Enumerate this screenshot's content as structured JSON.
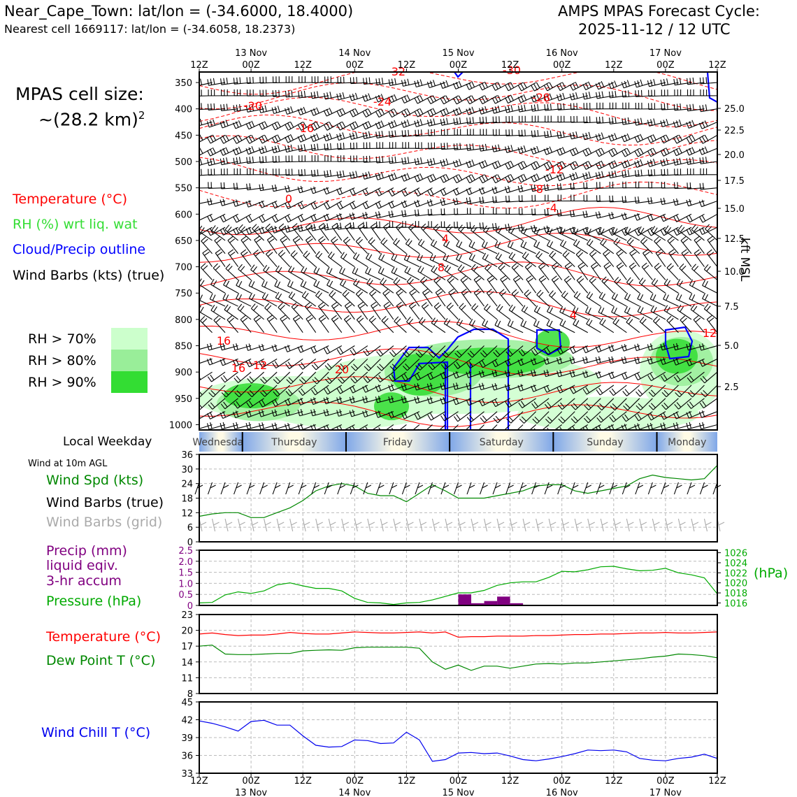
{
  "header": {
    "location": "Near_Cape_Town: lat/lon = (-34.6000, 18.4000)",
    "nearest_cell": "Nearest cell 1669117: lat/lon = (-34.6058, 18.2373)",
    "cycle_line1": "AMPS MPAS Forecast Cycle:",
    "cycle_line2": "2025-11-12 / 12 UTC"
  },
  "cell_size": {
    "line1": "MPAS cell size:",
    "line2": "~(28.2 km)",
    "sup": "2"
  },
  "legend_upper": {
    "temperature": "Temperature (°C)",
    "rh": "RH (%) wrt liq. wat",
    "cloud": "Cloud/Precip outline",
    "barbs": "Wind Barbs (kts) (true)",
    "rh70": "RH > 70%",
    "rh80": "RH > 80%",
    "rh90": "RH > 90%"
  },
  "colors": {
    "temperature": "#ff0000",
    "rh": "#33dd33",
    "cloud": "#0000ff",
    "rh70": "#ccffcc",
    "rh80": "#99ee99",
    "rh90": "#33dd33",
    "precip": "#800080",
    "pressure": "#00aa00",
    "dewpoint": "#008800",
    "windchill": "#0000ee",
    "grid_barbs": "#aaaaaa",
    "day_band": "#7fa7e8"
  },
  "time_axis": {
    "ticks": [
      "12Z",
      "00Z",
      "12Z",
      "00Z",
      "12Z",
      "00Z",
      "12Z",
      "00Z",
      "12Z",
      "00Z",
      "12Z"
    ],
    "dates": [
      "13 Nov",
      "14 Nov",
      "15 Nov",
      "16 Nov",
      "17 Nov"
    ]
  },
  "pressure_axis": {
    "ticks": [
      "350",
      "400",
      "450",
      "500",
      "550",
      "600",
      "650",
      "700",
      "750",
      "800",
      "850",
      "900",
      "950",
      "1000"
    ],
    "right_label": "kft MSL",
    "right_ticks": [
      "25.0",
      "22.5",
      "20.0",
      "17.5",
      "15.0",
      "12.5",
      "10.0",
      "7.5",
      "5.0",
      "2.5"
    ]
  },
  "contour_labels": [
    "-32",
    "-30",
    "-28",
    "-24",
    "-20",
    "-16",
    "-12",
    "-8",
    "-4",
    "0",
    "4",
    "8",
    "4",
    "16",
    "16",
    "12",
    "20",
    "12"
  ],
  "weekday": {
    "label": "Local Weekday",
    "days": [
      "Wednesday",
      "Thursday",
      "Friday",
      "Saturday",
      "Sunday",
      "Monday"
    ]
  },
  "panel_wind": {
    "title": "Wind at 10m AGL",
    "spd": "Wind Spd (kts)",
    "barbs_true": "Wind Barbs (true)",
    "barbs_grid": "Wind Barbs (grid)",
    "yticks": [
      "36",
      "30",
      "24",
      "18",
      "12",
      "6",
      "0"
    ]
  },
  "panel_precip": {
    "precip": "Precip (mm)",
    "liquid": "liquid eqiv.",
    "accum": "3-hr accum",
    "pressure": "Pressure (hPa)",
    "unit": "(hPa)",
    "yticks_left": [
      "2.5",
      "2.0",
      "1.5",
      "1.0",
      "0.5",
      "0"
    ],
    "yticks_right": [
      "1026",
      "1024",
      "1022",
      "1020",
      "1018",
      "1016"
    ]
  },
  "panel_temp": {
    "temperature": "Temperature (°C)",
    "dewpoint": "Dew Point T (°C)",
    "yticks": [
      "23",
      "20",
      "17",
      "14",
      "11",
      "8"
    ]
  },
  "panel_wc": {
    "label": "Wind Chill T (°C)",
    "yticks": [
      "45",
      "42",
      "39",
      "36",
      "33"
    ]
  },
  "chart_data": [
    {
      "type": "line",
      "name": "10m wind speed",
      "ylabel": "Wind Spd (kts)",
      "ylim": [
        0,
        36
      ],
      "x_hours": [
        0,
        3,
        6,
        9,
        12,
        15,
        18,
        21,
        24,
        27,
        30,
        33,
        36,
        39,
        42,
        45,
        48,
        51,
        54,
        57,
        60,
        63,
        66,
        69,
        72,
        75,
        78,
        81,
        84,
        87,
        90,
        93,
        96,
        99,
        102,
        105,
        108,
        111,
        114,
        117,
        120
      ],
      "series": [
        {
          "name": "Wind Spd (kts)",
          "values": [
            10.5,
            11.5,
            12,
            12,
            10,
            10,
            12,
            14,
            17,
            21,
            23,
            24,
            23,
            20,
            19,
            19,
            16.5,
            20,
            23.5,
            21,
            18,
            18,
            18,
            19,
            20,
            21,
            23,
            23.5,
            23.5,
            21,
            20,
            21,
            22,
            23,
            26,
            27.5,
            26.5,
            26,
            25.5,
            26,
            31.5
          ]
        }
      ]
    },
    {
      "type": "bar",
      "name": "3-hr precip",
      "ylabel": "Precip (mm)",
      "ylim": [
        0,
        2.5
      ],
      "x_hours": [
        60,
        63,
        66,
        69,
        72
      ],
      "values": [
        0.5,
        0.1,
        0.2,
        0.4,
        0.1
      ]
    },
    {
      "type": "line",
      "name": "pressure",
      "ylabel": "Pressure (hPa)",
      "ylim": [
        1015.5,
        1026.5
      ],
      "x_hours": [
        0,
        3,
        6,
        9,
        12,
        15,
        18,
        21,
        24,
        27,
        30,
        33,
        36,
        39,
        42,
        45,
        48,
        51,
        54,
        57,
        60,
        63,
        66,
        69,
        72,
        75,
        78,
        81,
        84,
        87,
        90,
        93,
        96,
        99,
        102,
        105,
        108,
        111,
        114,
        117,
        120
      ],
      "series": [
        {
          "name": "Pressure (hPa)",
          "values": [
            1016,
            1016.1,
            1017.6,
            1018.2,
            1017.9,
            1018.4,
            1019.6,
            1020,
            1019.4,
            1018.9,
            1018.9,
            1018.4,
            1016.9,
            1016.1,
            1016,
            1015.7,
            1016,
            1016.1,
            1016.6,
            1017.3,
            1018,
            1018,
            1018.5,
            1019.5,
            1020,
            1020.2,
            1020.2,
            1021.1,
            1022.3,
            1022.2,
            1022.6,
            1023.2,
            1023.3,
            1022.8,
            1022.4,
            1022.5,
            1022.9,
            1022,
            1021.6,
            1021,
            1017.8
          ]
        }
      ]
    },
    {
      "type": "line",
      "name": "temperature and dew point",
      "ylim": [
        8,
        23
      ],
      "x_hours": [
        0,
        3,
        6,
        9,
        12,
        15,
        18,
        21,
        24,
        27,
        30,
        33,
        36,
        39,
        42,
        45,
        48,
        51,
        54,
        57,
        60,
        63,
        66,
        69,
        72,
        75,
        78,
        81,
        84,
        87,
        90,
        93,
        96,
        99,
        102,
        105,
        108,
        111,
        114,
        117,
        120
      ],
      "series": [
        {
          "name": "Temperature (°C)",
          "values": [
            19.3,
            19.5,
            19.2,
            19,
            19.1,
            19.1,
            19.3,
            19.6,
            19.4,
            19.3,
            19.3,
            19.5,
            19.7,
            19.6,
            19.5,
            19.5,
            19.6,
            19.7,
            19.5,
            19.7,
            18.7,
            18.8,
            18.8,
            18.9,
            18.9,
            18.9,
            19,
            19,
            19.1,
            19.2,
            19.2,
            19.3,
            19.3,
            19.4,
            19.5,
            19.5,
            19.6,
            19.5,
            19.5,
            19.6,
            19.7
          ]
        },
        {
          "name": "Dew Point T (°C)",
          "values": [
            17,
            17.2,
            15.5,
            15.4,
            15.4,
            15.5,
            15.6,
            15.6,
            16.1,
            16.2,
            16.3,
            16.2,
            16.7,
            16.8,
            16.8,
            16.8,
            16.8,
            16.6,
            14,
            12.6,
            13.4,
            12.4,
            13.2,
            13.2,
            12.8,
            13.2,
            13.6,
            13.7,
            13.6,
            13.8,
            13.8,
            14,
            14.2,
            14.4,
            14.6,
            14.9,
            15.1,
            15.5,
            15.4,
            15.2,
            14.8
          ]
        }
      ]
    },
    {
      "type": "line",
      "name": "wind chill",
      "ylabel": "Wind Chill T (°C)",
      "ylim": [
        33,
        45
      ],
      "x_hours": [
        0,
        3,
        6,
        9,
        12,
        15,
        18,
        21,
        24,
        27,
        30,
        33,
        36,
        39,
        42,
        45,
        48,
        51,
        54,
        57,
        60,
        63,
        66,
        69,
        72,
        75,
        78,
        81,
        84,
        87,
        90,
        93,
        96,
        99,
        102,
        105,
        108,
        111,
        114,
        117,
        120
      ],
      "series": [
        {
          "name": "Wind Chill T (°C)",
          "values": [
            41.8,
            41.4,
            40.8,
            40.1,
            41.7,
            41.9,
            41.1,
            41.1,
            39.3,
            37.7,
            37.4,
            37.5,
            38.6,
            38.5,
            38,
            38.1,
            39.9,
            38.6,
            35,
            35.3,
            36.4,
            36.5,
            36.3,
            36.4,
            35.9,
            35.3,
            35.1,
            35.4,
            35.8,
            36.3,
            36.9,
            36.8,
            36.9,
            36.6,
            35.5,
            35.2,
            35.1,
            35.5,
            35.7,
            36.2,
            35.5
          ]
        }
      ]
    }
  ]
}
